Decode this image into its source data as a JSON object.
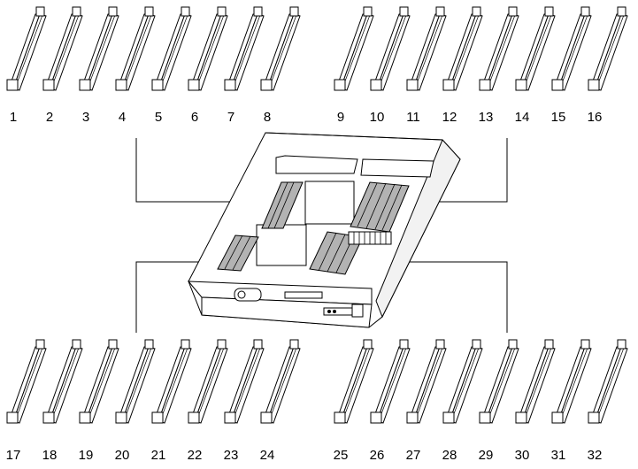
{
  "slots_top_left": [
    "1",
    "2",
    "3",
    "4",
    "5",
    "6",
    "7",
    "8"
  ],
  "slots_top_right": [
    "9",
    "10",
    "11",
    "12",
    "13",
    "14",
    "15",
    "16"
  ],
  "slots_bottom_left": [
    "17",
    "18",
    "19",
    "20",
    "21",
    "22",
    "23",
    "24"
  ],
  "slots_bottom_right": [
    "25",
    "26",
    "27",
    "28",
    "29",
    "30",
    "31",
    "32"
  ],
  "colors": {
    "line": "#000000",
    "dimm": "#b3b3b3",
    "background": "#ffffff"
  }
}
